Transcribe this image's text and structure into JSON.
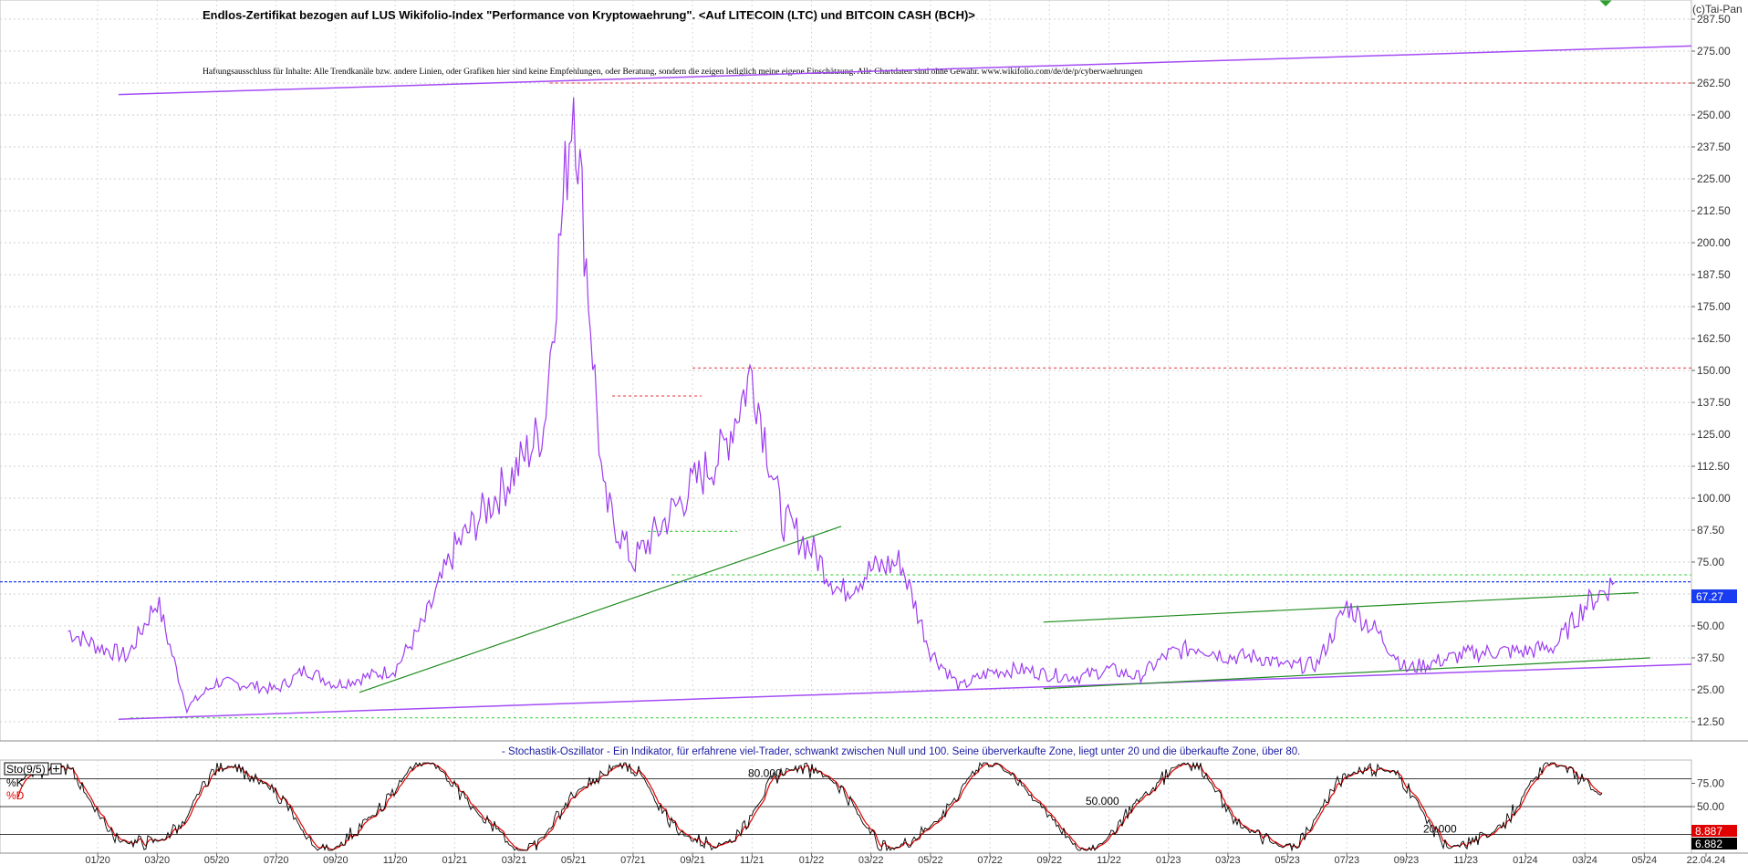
{
  "header": {
    "title": "Endlos-Zertifikat bezogen auf LUS Wikifolio-Index \"Performance von Kryptowaehrung\". <Auf LITECOIN (LTC) und BITCOIN CASH (BCH)>",
    "disclaimer": "Haftungsausschluss für Inhalte: Alle Trendkanäle bzw. andere Linien, oder Grafiken hier sind keine Empfehlungen, oder Beratung, sondern die zeigen lediglich meine eigene Einschätzung. Alle Chartdaten sind ohne Gewähr.  www.wikifolio.com/de/de/p/cyberwaehrungen",
    "copyright": "(c)Tai-Pan"
  },
  "colors": {
    "price": "#9d3cf0",
    "trend_purple": "#a44cf5",
    "trend_green": "#1e8c1e",
    "resistance_red": "#e63232",
    "support_green": "#33cc33",
    "last_price_blue": "#1a3cf0",
    "stoch_k": "#000000",
    "stoch_d": "#e00000"
  },
  "chart_data": [
    {
      "type": "line",
      "name": "price-chart",
      "ylim": [
        5,
        295
      ],
      "y_ticks": [
        "287.50",
        "275.00",
        "262.50",
        "250.00",
        "237.50",
        "225.00",
        "212.50",
        "200.00",
        "187.50",
        "175.00",
        "162.50",
        "150.00",
        "137.50",
        "125.00",
        "112.50",
        "100.00",
        "87.50",
        "75.00",
        "62.50",
        "50.00",
        "37.50",
        "25.00",
        "12.50"
      ],
      "x_ticks": [
        "01/20",
        "03/20",
        "05/20",
        "07/20",
        "09/20",
        "11/20",
        "01/21",
        "03/21",
        "05/21",
        "07/21",
        "09/21",
        "11/21",
        "01/22",
        "03/22",
        "05/22",
        "07/22",
        "09/22",
        "11/22",
        "01/23",
        "03/23",
        "05/23",
        "07/23",
        "09/23",
        "11/23",
        "01/24",
        "03/24",
        "05/24",
        "22.04.24"
      ],
      "last_value": "67.27",
      "series": [
        {
          "key": "price",
          "x": [
            "12/19",
            "01/20",
            "02/20",
            "03/20",
            "04/20",
            "05/20",
            "06/20",
            "07/20",
            "08/20",
            "09/20",
            "10/20",
            "11/20",
            "12/20",
            "01/21",
            "02/21",
            "03/21",
            "04/21",
            "05/21",
            "06/21",
            "07/21",
            "08/21",
            "09/21",
            "10/21",
            "11/21",
            "12/21",
            "01/22",
            "02/22",
            "03/22",
            "04/22",
            "05/22",
            "06/22",
            "07/22",
            "08/22",
            "09/22",
            "10/22",
            "11/22",
            "12/22",
            "01/23",
            "02/23",
            "03/23",
            "04/23",
            "05/23",
            "06/23",
            "07/23",
            "08/23",
            "09/23",
            "10/23",
            "11/23",
            "12/23",
            "01/24",
            "02/24",
            "03/24",
            "04/24"
          ],
          "values": [
            48,
            42,
            38,
            60,
            18,
            28,
            27,
            25,
            33,
            27,
            30,
            33,
            52,
            80,
            95,
            110,
            128,
            262,
            100,
            75,
            90,
            105,
            118,
            150,
            92,
            80,
            63,
            72,
            75,
            40,
            26,
            32,
            33,
            31,
            30,
            33,
            30,
            39,
            42,
            38,
            38,
            34,
            35,
            58,
            48,
            33,
            36,
            39,
            40,
            40,
            42,
            58,
            67
          ]
        }
      ],
      "annotations": {
        "resistance_lines": [
          262.5,
          151,
          140
        ],
        "support_lines": [
          70,
          87,
          14
        ],
        "last_price_line": 67.27
      }
    },
    {
      "type": "line",
      "name": "stochastic-oscillator",
      "caption": "- Stochastik-Oszillator - Ein Indikator, für erfahrene viel-Trader, schwankt zwischen Null und 100. Seine überverkaufte Zone, liegt unter 20 und die überkaufte Zone, über 80.",
      "ylim": [
        0,
        100
      ],
      "y_ticks": [
        "75.00",
        "50.00",
        "25.00"
      ],
      "levels": [
        "80.000",
        "50.000",
        "20.000"
      ],
      "legend": {
        "box_label": "Sto(9/5)",
        "k_label": "%K",
        "d_label": "%D"
      },
      "last_k": "8.887",
      "last_d": "6.882"
    }
  ]
}
